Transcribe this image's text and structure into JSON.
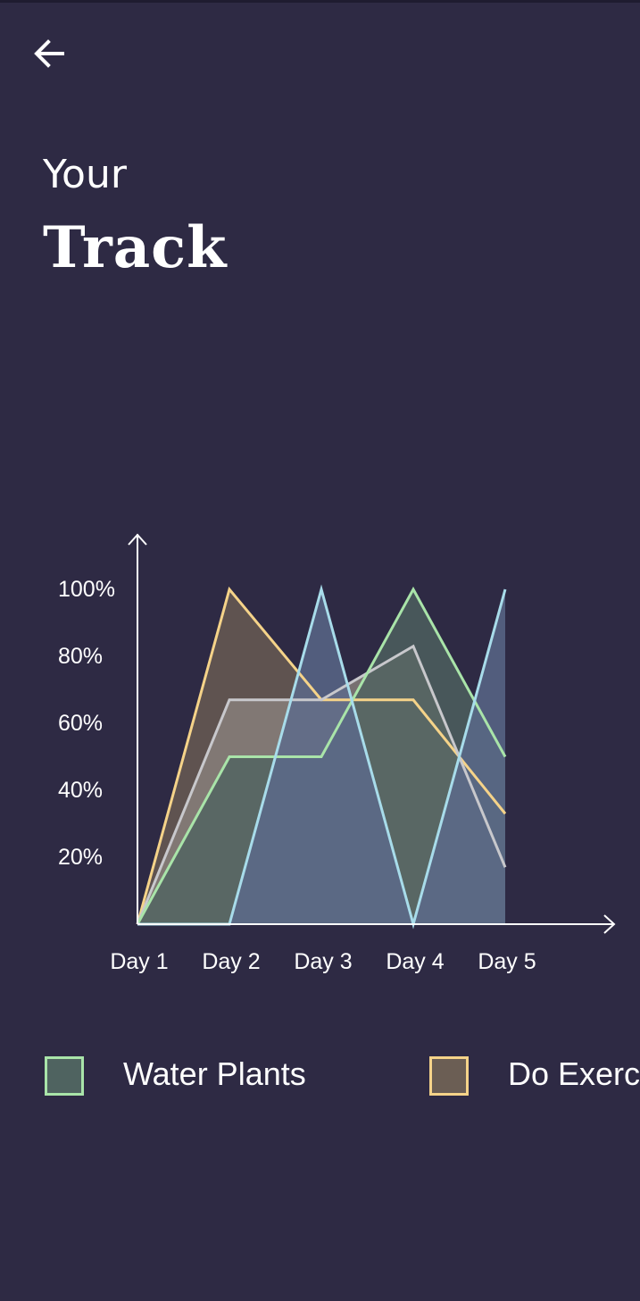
{
  "header": {
    "title_small": "Your",
    "title_big": "Track"
  },
  "icons": {
    "back": "back-arrow-icon"
  },
  "colors": {
    "background": "#2e2a44",
    "axis": "#ffffff"
  },
  "chart_data": {
    "type": "area",
    "categories": [
      "Day 1",
      "Day 2",
      "Day 3",
      "Day 4",
      "Day 5"
    ],
    "ylim": [
      0,
      100
    ],
    "yticks": [
      "20%",
      "40%",
      "60%",
      "80%",
      "100%"
    ],
    "ytick_values": [
      20,
      40,
      60,
      80,
      100
    ],
    "series": [
      {
        "name": "Do Exercise",
        "color": "#f5d389",
        "fill": "#6b5e54",
        "values": [
          0,
          100,
          67,
          67,
          33
        ]
      },
      {
        "name": "",
        "color": "#c8c8cc",
        "fill": "#8a827d",
        "values": [
          0,
          67,
          67,
          83,
          17
        ]
      },
      {
        "name": "Water Plants",
        "color": "#a9e4a9",
        "fill": "#4f6360",
        "values": [
          0,
          50,
          50,
          100,
          50
        ]
      },
      {
        "name": "",
        "color": "#a8dcea",
        "fill": "#5b6a8c",
        "values": [
          0,
          0,
          100,
          0,
          100
        ]
      }
    ]
  },
  "legend": {
    "items": [
      {
        "label": "Water Plants",
        "border": "#a9e4a9",
        "fill": "#4f6360"
      },
      {
        "label": "Do Exercise",
        "border": "#f5d389",
        "fill": "#6b5e54"
      }
    ]
  }
}
